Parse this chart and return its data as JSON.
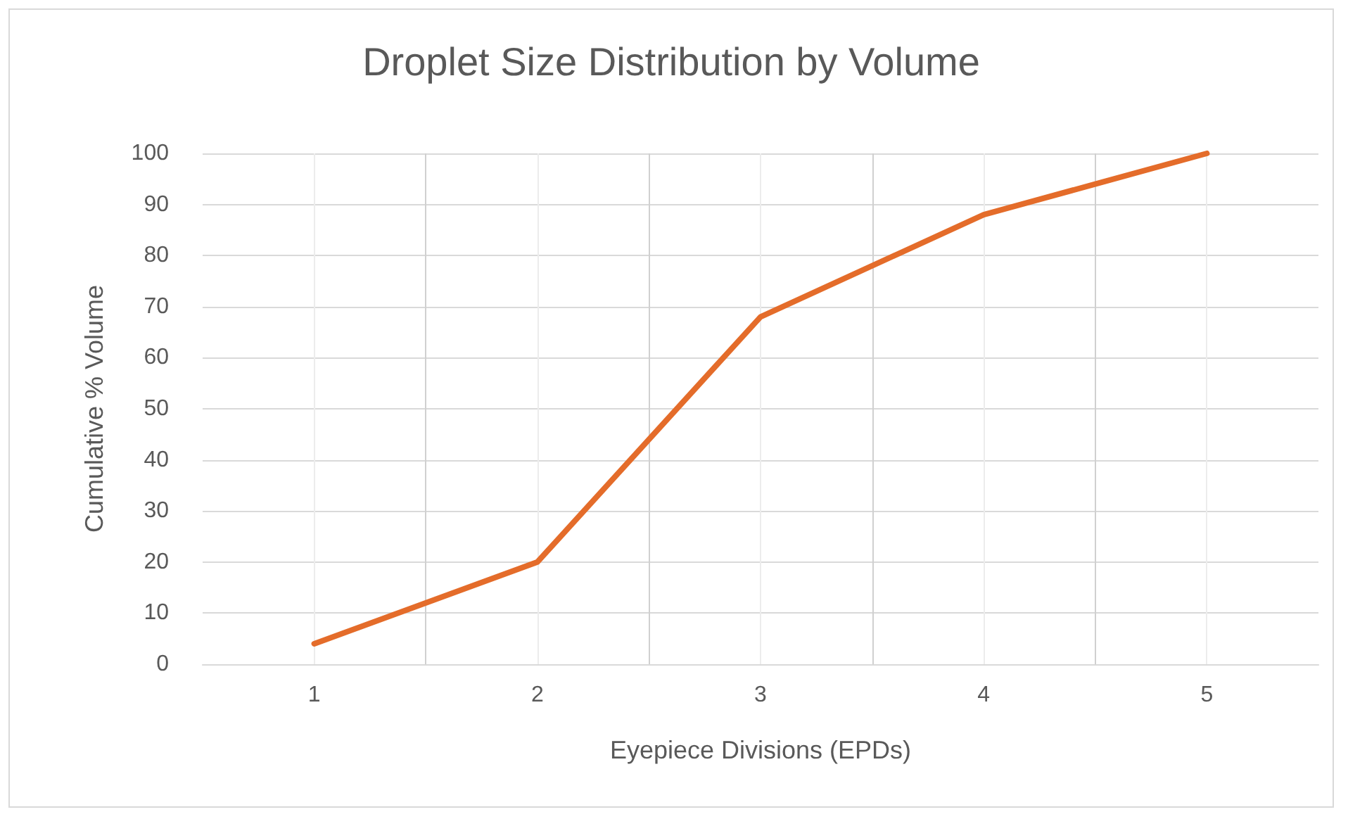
{
  "chart_data": {
    "type": "line",
    "title": "Droplet Size Distribution by Volume",
    "xlabel": "Eyepiece Divisions (EPDs)",
    "ylabel": "Cumulative % Volume",
    "x": [
      1,
      2,
      3,
      4,
      5
    ],
    "xlim": [
      0.5,
      5.5
    ],
    "xticks": [
      1,
      2,
      3,
      4,
      5
    ],
    "ylim": [
      0,
      100
    ],
    "yticks": [
      0,
      10,
      20,
      30,
      40,
      50,
      60,
      70,
      80,
      90,
      100
    ],
    "series": [
      {
        "color": "#e46c2a",
        "values": [
          4,
          20,
          68,
          88,
          100
        ]
      }
    ],
    "grid": true,
    "marker": "none",
    "line_style": "solid"
  }
}
